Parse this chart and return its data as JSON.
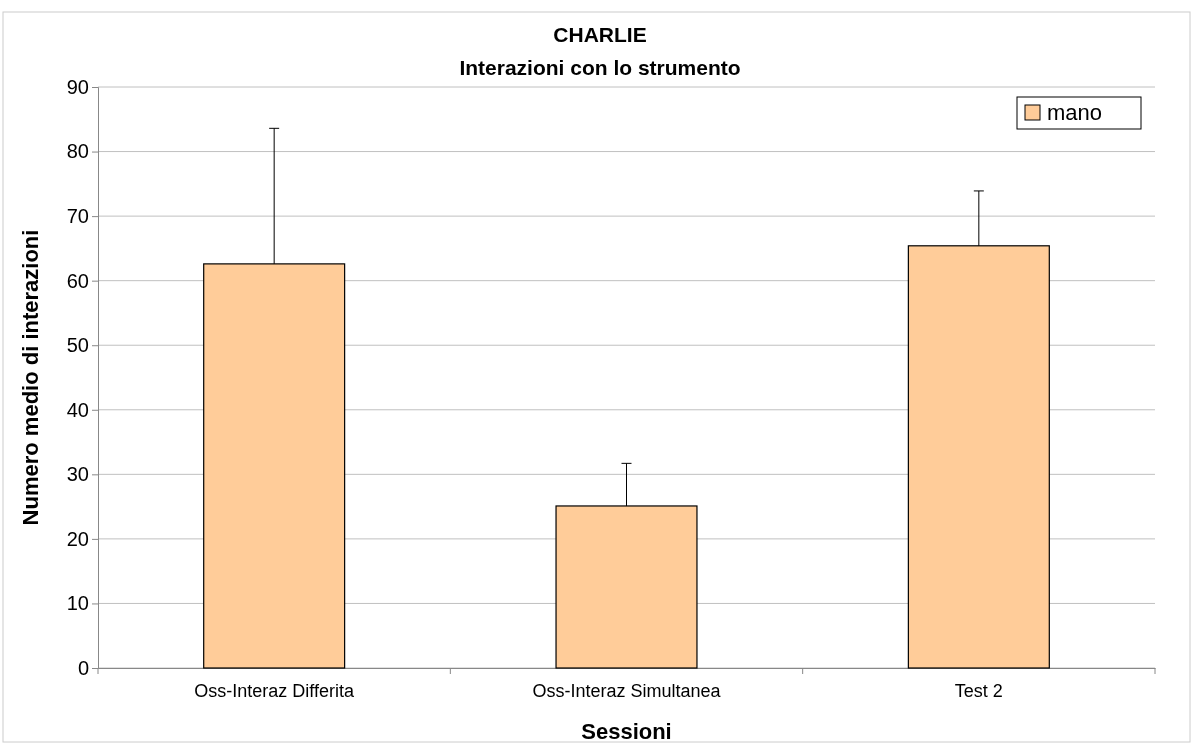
{
  "chart_data": {
    "type": "bar",
    "title": "CHARLIE",
    "subtitle": "Interazioni con lo strumento",
    "xlabel": "Sessioni",
    "ylabel": "Numero medio di interazioni",
    "categories": [
      "Oss-Interaz Differita",
      "Oss-Interaz Simultanea",
      "Test 2"
    ],
    "series": [
      {
        "name": "mano",
        "color": "#ffcc99",
        "values": [
          62.6,
          25.1,
          65.4
        ],
        "errors": [
          [
            62.6,
            83.6
          ],
          [
            25.1,
            31.7
          ],
          [
            65.4,
            73.9
          ]
        ]
      }
    ],
    "ylim": [
      0,
      90
    ],
    "yticks": [
      0,
      10,
      20,
      30,
      40,
      50,
      60,
      70,
      80,
      90
    ],
    "grid": "y",
    "legend": "top right"
  }
}
